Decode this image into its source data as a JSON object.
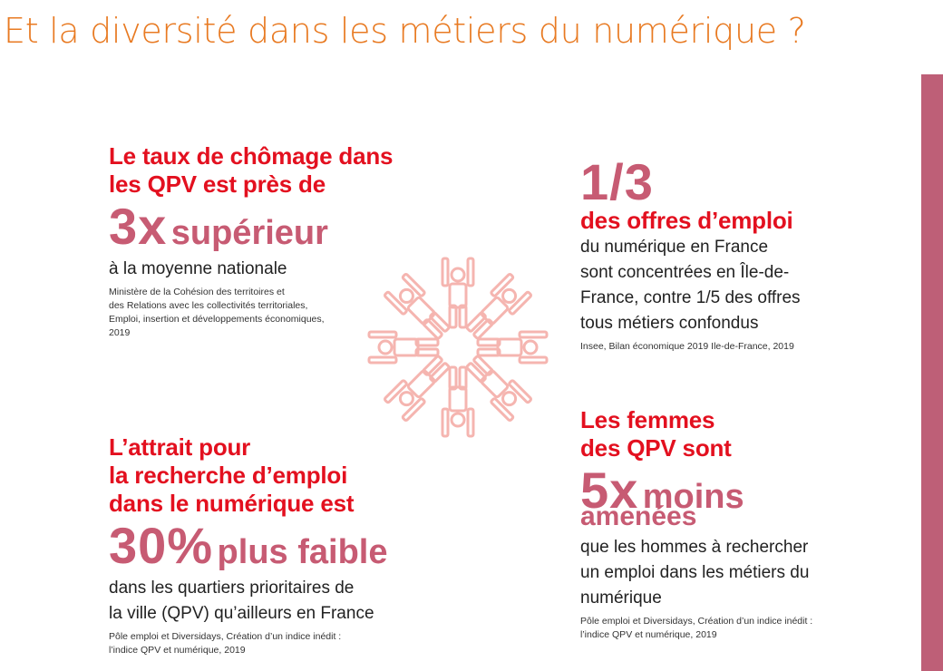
{
  "title": "Et la diversité dans les métiers du numérique ?",
  "colors": {
    "title_orange": "#e87a22",
    "headline_red": "#e3101f",
    "stat_pink": "#c75b73",
    "side_bar": "#be5f77",
    "figure_pink": "#f5b5b0"
  },
  "blocks": {
    "unemployment": {
      "heading": [
        "Le taux de chômage dans",
        "les QPV est près de"
      ],
      "stat_number": "3x",
      "stat_word": "supérieur",
      "body": "à la moyenne nationale",
      "source": [
        "Ministère de la Cohésion des territoires et",
        "des Relations avec les collectivités territoriales,",
        "Emploi, insertion et développements économiques,",
        "2019"
      ]
    },
    "attraction": {
      "heading": [
        "L’attrait pour",
        "la recherche d’emploi",
        "dans le numérique est"
      ],
      "stat_number": "30%",
      "stat_word": "plus faible",
      "body": [
        "dans les quartiers prioritaires de",
        "la ville (QPV) qu’ailleurs en France"
      ],
      "source": [
        "Pôle emploi et Diversidays, Création d’un indice inédit :",
        "l’indice QPV et numérique, 2019"
      ]
    },
    "job_offers": {
      "stat_number": "1/3",
      "heading": "des offres d’emploi",
      "body": [
        "du numérique en France",
        "sont concentrées en Île-de-",
        "France, contre 1/5 des offres",
        "tous métiers confondus"
      ],
      "source": "Insee, Bilan économique 2019 Ile-de-France, 2019"
    },
    "women": {
      "heading": [
        "Les femmes",
        "des QPV sont"
      ],
      "stat_number": "5x",
      "stat_word": "moins",
      "stat_word_2": "amenées",
      "body": [
        "que les hommes à rechercher",
        "un emploi dans les métiers du",
        "numérique"
      ],
      "source": [
        "Pôle emploi et Diversidays, Création d’un indice inédit :",
        "l’indice QPV et numérique, 2019"
      ]
    }
  },
  "illustration": {
    "name": "circle-of-people-icon",
    "figure_count": 8
  }
}
